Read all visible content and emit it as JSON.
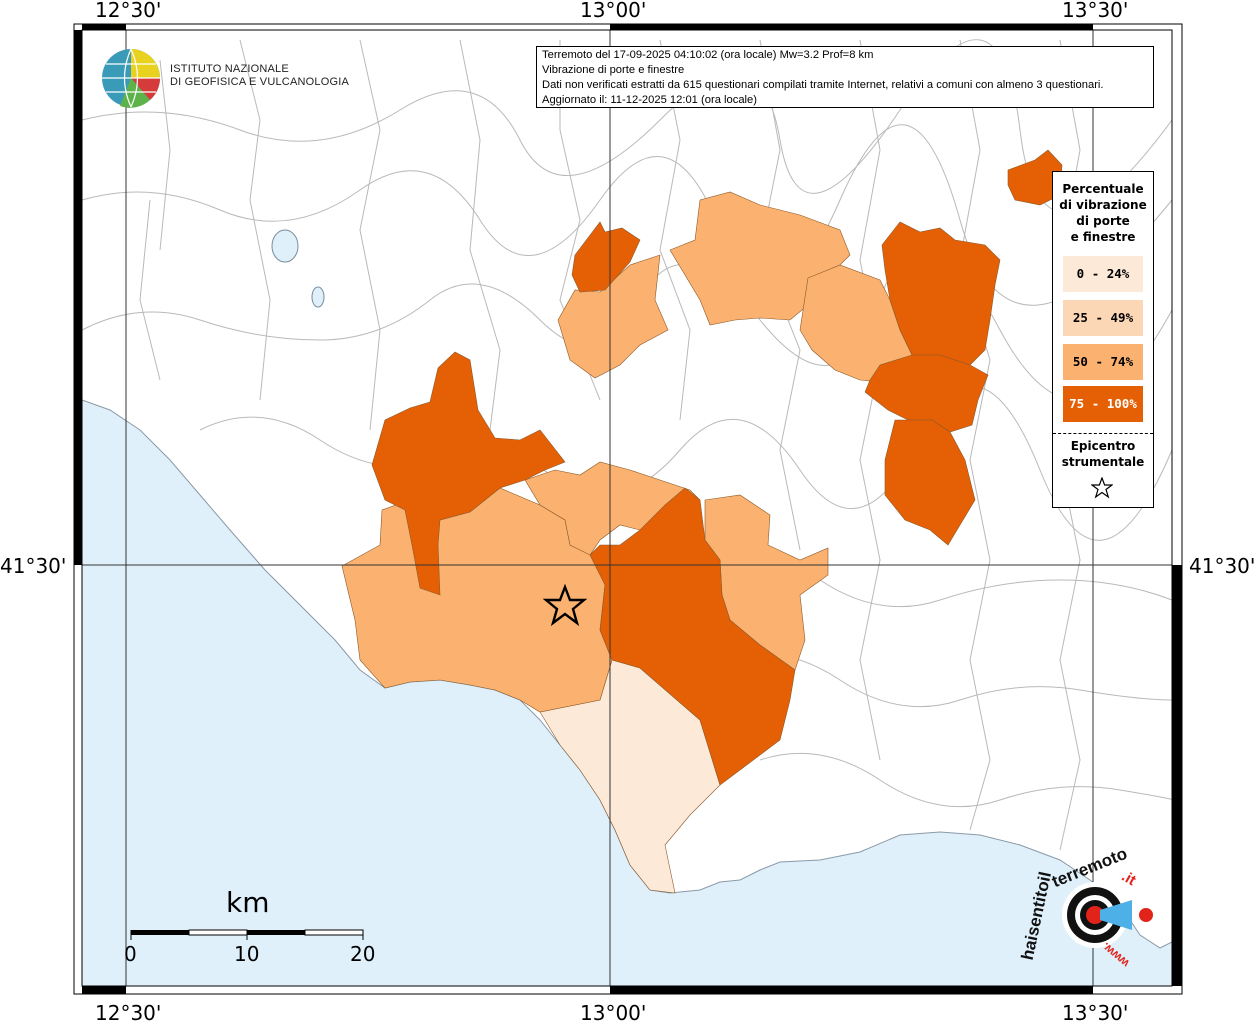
{
  "map_frame": {
    "lon_labels_top": [
      "12°30'",
      "13°00'",
      "13°30'"
    ],
    "lon_labels_bottom": [
      "12°30'",
      "13°00'",
      "13°30'"
    ],
    "lat_labels_left": [
      "41°30'"
    ],
    "lat_labels_right": [
      "41°30'"
    ]
  },
  "info_box": {
    "line1": "Terremoto del 17-09-2025 04:10:02 (ora locale) Mw=3.2 Prof=8 km",
    "line2": "Vibrazione di porte e finestre",
    "line3": "Dati non verificati estratti da 615 questionari compilati tramite Internet, relativi a comuni con almeno 3 questionari.",
    "line4": "Aggiornato il: 11-12-2025 12:01 (ora locale)"
  },
  "logo": {
    "line1": "ISTITUTO NAZIONALE",
    "line2": "DI GEOFISICA E VULCANOLOGIA"
  },
  "legend": {
    "title_lines": [
      "Percentuale",
      "di vibrazione",
      "di porte",
      "e finestre"
    ],
    "classes": [
      {
        "label": "0 - 24%",
        "color": "#fde9d7",
        "text_color": "#000000"
      },
      {
        "label": "25 - 49%",
        "color": "#fcd7b6",
        "text_color": "#000000"
      },
      {
        "label": "50 - 74%",
        "color": "#fbb16f",
        "text_color": "#000000"
      },
      {
        "label": "75 - 100%",
        "color": "#e56005",
        "text_color": "#ffffff"
      }
    ],
    "epicenter_lines": [
      "Epicentro",
      "strumentale"
    ],
    "epicenter_icon": "star-outline-icon"
  },
  "scale_bar": {
    "unit": "km",
    "ticks": [
      "0",
      "10",
      "20"
    ]
  },
  "hst_logo": {
    "text": "haisentitoilterremoto.it",
    "brand_part": "haisentitoil",
    "red_part": "terremoto",
    "suffix": ".it",
    "www": "www.",
    "icon": "seismograph-target-icon"
  },
  "colors": {
    "sea": "#dff0fb",
    "land": "#ffffff",
    "boundary": "#b9b9b9",
    "class_0_24": "#fde9d7",
    "class_25_49": "#fcd7b6",
    "class_50_74": "#fbb16f",
    "class_75_100": "#e56005"
  }
}
